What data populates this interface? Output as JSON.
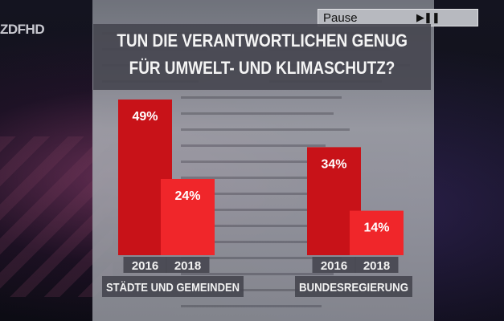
{
  "overlay": {
    "channel_logo": "ZDFHD",
    "osd_label": "Pause",
    "osd_icon": "play-pause-icon"
  },
  "chart_data": {
    "type": "bar",
    "title_lines": [
      "TUN DIE VERANTWORTLICHEN GENUG",
      "FÜR UMWELT- UND KLIMASCHUTZ?"
    ],
    "groups": [
      {
        "name": "STÄDTE UND GEMEINDEN",
        "categories": [
          "2016",
          "2018"
        ],
        "values": [
          49,
          24
        ],
        "labels": [
          "49%",
          "24%"
        ]
      },
      {
        "name": "BUNDESREGIERUNG",
        "categories": [
          "2016",
          "2018"
        ],
        "values": [
          34,
          14
        ],
        "labels": [
          "34%",
          "14%"
        ]
      }
    ],
    "unit": "%",
    "ylim": [
      0,
      49
    ],
    "grid": false,
    "colors": {
      "2016": "#c81218",
      "2018": "#f0262a"
    }
  }
}
